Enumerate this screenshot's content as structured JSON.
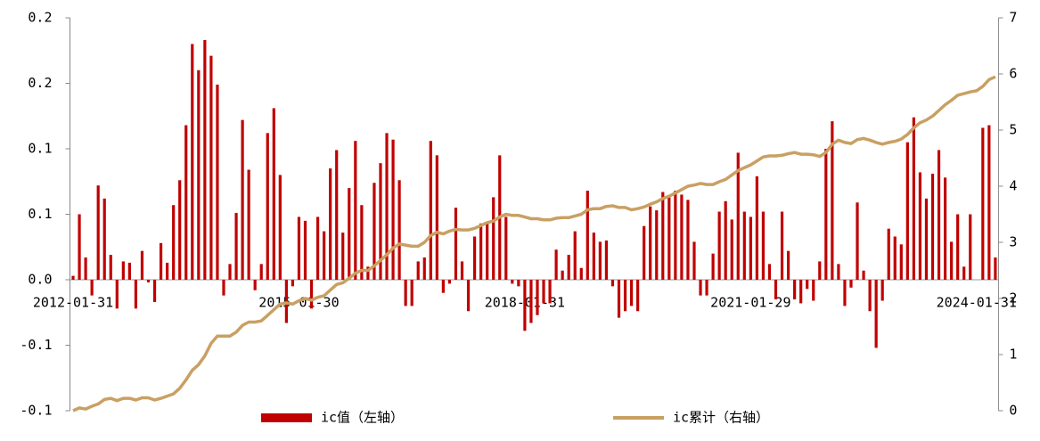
{
  "chart_data": {
    "type": "bar",
    "categories": [
      "2012-01-31",
      null,
      null,
      null,
      null,
      null,
      null,
      null,
      null,
      null,
      null,
      null,
      null,
      null,
      null,
      null,
      null,
      null,
      null,
      null,
      null,
      null,
      null,
      null,
      null,
      null,
      null,
      null,
      null,
      null,
      null,
      null,
      null,
      null,
      null,
      null,
      "2015-01-30",
      null,
      null,
      null,
      null,
      null,
      null,
      null,
      null,
      null,
      null,
      null,
      null,
      null,
      null,
      null,
      null,
      null,
      null,
      null,
      null,
      null,
      null,
      null,
      null,
      null,
      null,
      null,
      null,
      null,
      null,
      null,
      null,
      null,
      null,
      null,
      "2018-01-31",
      null,
      null,
      null,
      null,
      null,
      null,
      null,
      null,
      null,
      null,
      null,
      null,
      null,
      null,
      null,
      null,
      null,
      null,
      null,
      null,
      null,
      null,
      null,
      null,
      null,
      null,
      null,
      null,
      null,
      null,
      null,
      null,
      null,
      null,
      null,
      "2021-01-29",
      null,
      null,
      null,
      null,
      null,
      null,
      null,
      null,
      null,
      null,
      null,
      null,
      null,
      null,
      null,
      null,
      null,
      null,
      null,
      null,
      null,
      null,
      null,
      null,
      null,
      null,
      null,
      null,
      null,
      null,
      null,
      null,
      null,
      null,
      null,
      "2024-01-31",
      null,
      null,
      null
    ],
    "series": [
      {
        "name": "ic值（左轴）",
        "type": "bar",
        "color": "#c00000",
        "values": [
          0.003,
          0.05,
          0.017,
          -0.012,
          0.072,
          0.062,
          0.019,
          -0.022,
          0.014,
          0.013,
          -0.022,
          0.022,
          -0.002,
          -0.017,
          0.028,
          0.013,
          0.057,
          0.076,
          0.118,
          0.18,
          0.16,
          0.183,
          0.171,
          0.149,
          -0.012,
          0.012,
          0.051,
          0.122,
          0.084,
          -0.008,
          0.012,
          0.112,
          0.131,
          0.08,
          -0.033,
          -0.005,
          0.048,
          0.045,
          -0.022,
          0.048,
          0.037,
          0.085,
          0.099,
          0.036,
          0.07,
          0.106,
          0.057,
          0.01,
          0.074,
          0.089,
          0.112,
          0.107,
          0.076,
          -0.02,
          -0.02,
          0.014,
          0.017,
          0.106,
          0.095,
          -0.01,
          -0.003,
          0.055,
          0.014,
          -0.024,
          0.033,
          0.043,
          0.044,
          0.063,
          0.095,
          0.048,
          -0.003,
          -0.005,
          -0.039,
          -0.033,
          -0.027,
          -0.018,
          -0.018,
          0.023,
          0.007,
          0.019,
          0.037,
          0.009,
          0.068,
          0.036,
          0.029,
          0.03,
          -0.005,
          -0.029,
          -0.024,
          -0.02,
          -0.024,
          0.041,
          0.056,
          0.053,
          0.067,
          0.063,
          0.068,
          0.065,
          0.061,
          0.029,
          -0.012,
          -0.012,
          0.02,
          0.052,
          0.06,
          0.046,
          0.097,
          0.052,
          0.048,
          0.079,
          0.052,
          0.012,
          -0.015,
          0.052,
          0.022,
          -0.015,
          -0.018,
          -0.007,
          -0.016,
          0.014,
          0.1,
          0.121,
          0.012,
          -0.02,
          -0.006,
          0.059,
          0.007,
          -0.024,
          -0.052,
          -0.016,
          0.039,
          0.033,
          0.027,
          0.105,
          0.124,
          0.082,
          0.062,
          0.081,
          0.099,
          0.078,
          0.029,
          0.05,
          0.01,
          0.05,
          0,
          0.116,
          0.118,
          0.017
        ]
      },
      {
        "name": "ic累计（右轴）",
        "type": "line",
        "axis": "y2",
        "color": "#c9a063",
        "values": [
          0,
          0.05,
          0.03,
          0.08,
          0.12,
          0.2,
          0.22,
          0.18,
          0.22,
          0.22,
          0.19,
          0.23,
          0.23,
          0.19,
          0.22,
          0.26,
          0.3,
          0.4,
          0.55,
          0.72,
          0.82,
          0.98,
          1.2,
          1.33,
          1.33,
          1.33,
          1.4,
          1.52,
          1.58,
          1.58,
          1.6,
          1.7,
          1.8,
          1.9,
          1.92,
          1.9,
          1.96,
          2.0,
          1.97,
          2.02,
          2.05,
          2.15,
          2.25,
          2.28,
          2.36,
          2.45,
          2.5,
          2.5,
          2.58,
          2.68,
          2.78,
          2.9,
          2.97,
          2.95,
          2.93,
          2.93,
          3.0,
          3.12,
          3.18,
          3.15,
          3.2,
          3.23,
          3.22,
          3.22,
          3.25,
          3.3,
          3.35,
          3.38,
          3.45,
          3.5,
          3.48,
          3.48,
          3.45,
          3.42,
          3.42,
          3.4,
          3.4,
          3.43,
          3.44,
          3.44,
          3.47,
          3.5,
          3.58,
          3.6,
          3.6,
          3.64,
          3.65,
          3.62,
          3.62,
          3.58,
          3.6,
          3.63,
          3.68,
          3.72,
          3.78,
          3.82,
          3.88,
          3.94,
          4.0,
          4.02,
          4.05,
          4.03,
          4.03,
          4.08,
          4.12,
          4.2,
          4.28,
          4.33,
          4.38,
          4.45,
          4.52,
          4.54,
          4.54,
          4.55,
          4.58,
          4.6,
          4.57,
          4.57,
          4.56,
          4.53,
          4.6,
          4.75,
          4.82,
          4.78,
          4.76,
          4.83,
          4.85,
          4.82,
          4.78,
          4.75,
          4.78,
          4.8,
          4.84,
          4.92,
          5.04,
          5.13,
          5.18,
          5.25,
          5.35,
          5.45,
          5.53,
          5.62,
          5.65,
          5.68,
          5.7,
          5.78,
          5.9,
          5.95
        ]
      }
    ],
    "ylim": [
      -0.1,
      0.2
    ],
    "yticks": [
      -0.1,
      {
        "value": -0.05,
        "label": "-0.1"
      },
      {
        "value": 0,
        "label": "0.0"
      },
      {
        "value": 0.05,
        "label": "0.1"
      },
      0.1,
      {
        "value": 0.15,
        "label": "0.2"
      },
      0.2
    ],
    "y2lim": [
      0,
      7
    ],
    "y2ticks": [
      0,
      1,
      2,
      3,
      4,
      5,
      6,
      7
    ],
    "grid": false,
    "legend": "bottom"
  }
}
